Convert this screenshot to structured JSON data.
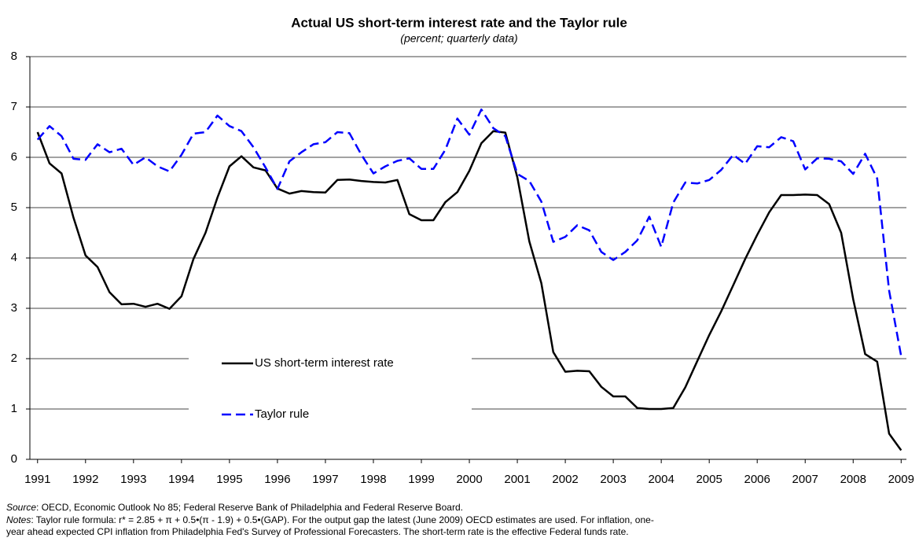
{
  "chart_data": {
    "type": "line",
    "title": "Actual US short-term interest rate and the Taylor rule",
    "subtitle": "(percent; quarterly data)",
    "x": [
      1991,
      1991.25,
      1991.5,
      1991.75,
      1992,
      1992.25,
      1992.5,
      1992.75,
      1993,
      1993.25,
      1993.5,
      1993.75,
      1994,
      1994.25,
      1994.5,
      1994.75,
      1995,
      1995.25,
      1995.5,
      1995.75,
      1996,
      1996.25,
      1996.5,
      1996.75,
      1997,
      1997.25,
      1997.5,
      1997.75,
      1998,
      1998.25,
      1998.5,
      1998.75,
      1999,
      1999.25,
      1999.5,
      1999.75,
      2000,
      2000.25,
      2000.5,
      2000.75,
      2001,
      2001.25,
      2001.5,
      2001.75,
      2002,
      2002.25,
      2002.5,
      2002.75,
      2003,
      2003.25,
      2003.5,
      2003.75,
      2004,
      2004.25,
      2004.5,
      2004.75,
      2005,
      2005.25,
      2005.5,
      2005.75,
      2006,
      2006.25,
      2006.5,
      2006.75,
      2007,
      2007.25,
      2007.5,
      2007.75,
      2008,
      2008.25,
      2008.5,
      2008.75,
      2009
    ],
    "series": [
      {
        "name": "US short-term interest rate",
        "color": "#000000",
        "dash": false,
        "values": [
          6.5,
          5.88,
          5.68,
          4.8,
          4.05,
          3.82,
          3.32,
          3.08,
          3.09,
          3.03,
          3.09,
          2.99,
          3.24,
          3.98,
          4.5,
          5.2,
          5.82,
          6.02,
          5.8,
          5.74,
          5.38,
          5.28,
          5.33,
          5.31,
          5.3,
          5.55,
          5.56,
          5.53,
          5.51,
          5.5,
          5.55,
          4.87,
          4.75,
          4.75,
          5.11,
          5.31,
          5.73,
          6.28,
          6.52,
          6.49,
          5.6,
          4.33,
          3.5,
          2.13,
          1.74,
          1.76,
          1.75,
          1.44,
          1.25,
          1.25,
          1.02,
          1.0,
          1.0,
          1.02,
          1.43,
          1.95,
          2.47,
          2.94,
          3.46,
          3.98,
          4.46,
          4.91,
          5.25,
          5.25,
          5.26,
          5.25,
          5.07,
          4.5,
          3.18,
          2.09,
          1.94,
          0.51,
          0.18
        ]
      },
      {
        "name": "Taylor rule",
        "color": "#0000ff",
        "dash": true,
        "values": [
          6.35,
          6.62,
          6.42,
          5.97,
          5.95,
          6.26,
          6.1,
          6.17,
          5.85,
          6.0,
          5.82,
          5.72,
          6.05,
          6.47,
          6.5,
          6.83,
          6.62,
          6.52,
          6.2,
          5.8,
          5.37,
          5.92,
          6.1,
          6.26,
          6.3,
          6.5,
          6.48,
          6.05,
          5.68,
          5.82,
          5.93,
          5.98,
          5.77,
          5.77,
          6.15,
          6.77,
          6.45,
          6.95,
          6.58,
          6.42,
          5.67,
          5.53,
          5.12,
          4.32,
          4.42,
          4.65,
          4.55,
          4.12,
          3.96,
          4.12,
          4.35,
          4.82,
          4.22,
          5.1,
          5.5,
          5.48,
          5.55,
          5.75,
          6.05,
          5.87,
          6.22,
          6.2,
          6.4,
          6.32,
          5.76,
          5.98,
          5.97,
          5.92,
          5.67,
          6.07,
          5.58,
          3.35,
          2.05
        ]
      }
    ],
    "xlim": [
      1990.84,
      2009.11
    ],
    "xticks": [
      1991,
      1992,
      1993,
      1994,
      1995,
      1996,
      1997,
      1998,
      1999,
      2000,
      2001,
      2002,
      2003,
      2004,
      2005,
      2006,
      2007,
      2008,
      2009
    ],
    "ylim": [
      0,
      8
    ],
    "yticks": [
      0,
      1,
      2,
      3,
      4,
      5,
      6,
      7,
      8
    ],
    "grid": true,
    "legend": "lower left"
  },
  "source": {
    "label": "Source",
    "text": ": OECD, Economic Outlook No 85; Federal Reserve Bank of Philadelphia and Federal Reserve Board."
  },
  "notes": {
    "label": "Notes",
    "lines": [
      ": Taylor rule formula: r* = 2.85 + π + 0.5•(π - 1.9) + 0.5•(GAP).  For the output gap the latest (June 2009) OECD estimates are used. For inflation, one-",
      "year ahead expected CPI inflation from Philadelphia Fed's Survey of Professional Forecasters. The short-term rate is the effective Federal funds rate."
    ]
  }
}
